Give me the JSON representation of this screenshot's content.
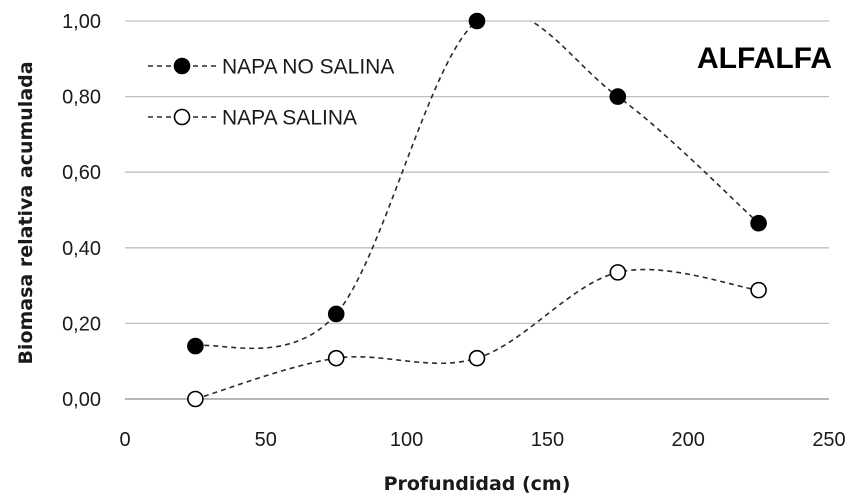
{
  "chart_data": {
    "type": "line",
    "title": "",
    "annotation": "ALFALFA",
    "xlabel": "Profundidad (cm)",
    "ylabel": "Biomasa relativa acumulada",
    "xlim": [
      0,
      250
    ],
    "ylim": [
      0,
      1.0
    ],
    "xticks": [
      0,
      50,
      100,
      150,
      200,
      250
    ],
    "xtick_labels": [
      "0",
      "50",
      "100",
      "150",
      "200",
      "250"
    ],
    "yticks": [
      0,
      0.2,
      0.4,
      0.6,
      0.8,
      1.0
    ],
    "ytick_labels": [
      "0,00",
      "0,20",
      "0,40",
      "0,60",
      "0,80",
      "1,00"
    ],
    "grid": "horizontal",
    "legend_position": "top-left",
    "line_style": "dashed-smooth",
    "series": [
      {
        "name": "NAPA NO SALINA",
        "marker": "filled-circle",
        "color": "#000000",
        "x": [
          25,
          75,
          125,
          175,
          225
        ],
        "y": [
          0.14,
          0.225,
          1.0,
          0.8,
          0.465
        ]
      },
      {
        "name": "NAPA SALINA",
        "marker": "open-circle",
        "color": "#000000",
        "x": [
          25,
          75,
          125,
          175,
          225
        ],
        "y": [
          0.0,
          0.108,
          0.108,
          0.335,
          0.288
        ]
      }
    ]
  }
}
